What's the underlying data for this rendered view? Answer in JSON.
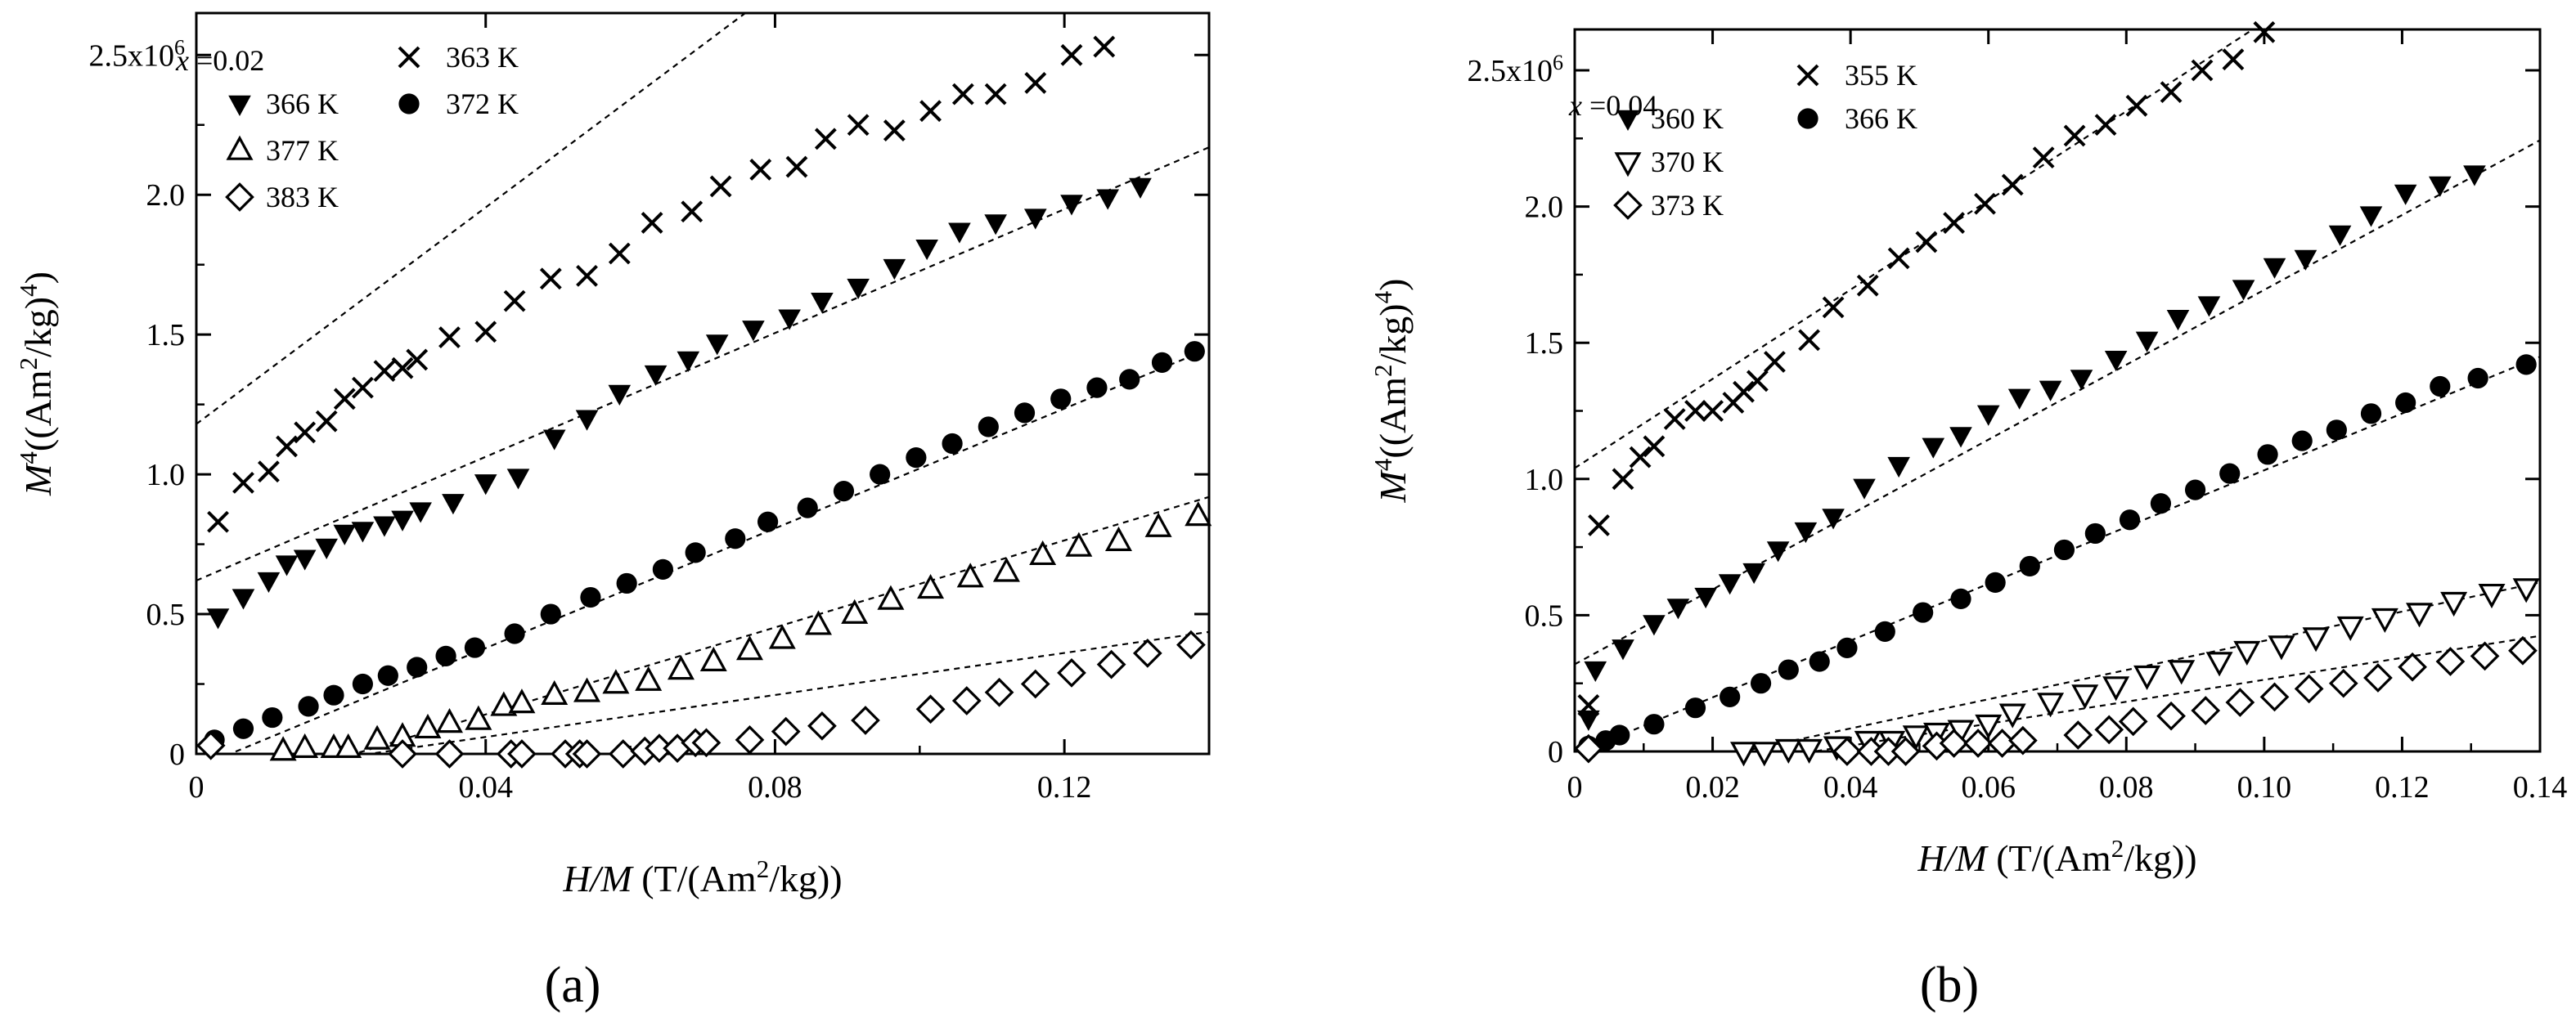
{
  "chart_data": [
    {
      "type": "scatter",
      "panel": "(a)",
      "composition": "x =0.02",
      "xlabel": "H/M (T/(Am²/kg))",
      "ylabel": "M⁴((Am²/kg)⁴)",
      "xlim": [
        0,
        0.14
      ],
      "ylim": [
        0,
        2.65
      ],
      "y_multiplier_label": "2.5x10⁶",
      "xticks": [
        0,
        0.04,
        0.08,
        0.12
      ],
      "xtick_labels": [
        "0",
        "0.04",
        "0.08",
        "0.12"
      ],
      "yticks": [
        0,
        0.5,
        1.0,
        1.5,
        2.0,
        2.5
      ],
      "ytick_labels": [
        "0",
        "0.5",
        "1.0",
        "1.5",
        "2.0",
        "2.5x10⁶"
      ],
      "legend_position": "top-left",
      "series": [
        {
          "name": "363 K",
          "marker": "cross",
          "x": [
            0.003,
            0.0065,
            0.01,
            0.0125,
            0.015,
            0.018,
            0.0205,
            0.023,
            0.026,
            0.0285,
            0.0305,
            0.035,
            0.04,
            0.044,
            0.049,
            0.054,
            0.0585,
            0.063,
            0.0685,
            0.0725,
            0.078,
            0.083,
            0.087,
            0.0915,
            0.0965,
            0.1015,
            0.106,
            0.1105,
            0.116,
            0.121,
            0.1255
          ],
          "y": [
            0.83,
            0.97,
            1.01,
            1.1,
            1.15,
            1.19,
            1.27,
            1.31,
            1.37,
            1.38,
            1.41,
            1.49,
            1.51,
            1.62,
            1.7,
            1.71,
            1.79,
            1.9,
            1.94,
            2.03,
            2.09,
            2.1,
            2.2,
            2.25,
            2.23,
            2.3,
            2.36,
            2.36,
            2.4,
            2.5,
            2.53
          ],
          "fit": [
            1.18,
            0.1937
          ]
        },
        {
          "name": "366 K",
          "marker": "triangle-down-filled",
          "x": [
            0.003,
            0.0065,
            0.01,
            0.0125,
            0.015,
            0.018,
            0.0205,
            0.023,
            0.026,
            0.0285,
            0.031,
            0.0355,
            0.04,
            0.0445,
            0.0495,
            0.054,
            0.0585,
            0.0635,
            0.068,
            0.072,
            0.077,
            0.082,
            0.0865,
            0.0915,
            0.0965,
            0.101,
            0.1055,
            0.1105,
            0.116,
            0.121,
            0.126,
            0.1305
          ],
          "y": [
            0.49,
            0.56,
            0.62,
            0.68,
            0.7,
            0.74,
            0.79,
            0.8,
            0.82,
            0.84,
            0.87,
            0.9,
            0.97,
            0.99,
            1.13,
            1.2,
            1.29,
            1.36,
            1.41,
            1.47,
            1.52,
            1.56,
            1.62,
            1.67,
            1.74,
            1.81,
            1.87,
            1.9,
            1.92,
            1.97,
            1.99,
            2.03
          ],
          "fit": [
            0.62,
            0.1107
          ]
        },
        {
          "name": "372 K",
          "marker": "circle-filled",
          "x": [
            0.0025,
            0.0065,
            0.0105,
            0.0155,
            0.019,
            0.023,
            0.0265,
            0.0305,
            0.0345,
            0.0385,
            0.044,
            0.049,
            0.0545,
            0.0595,
            0.0645,
            0.069,
            0.0745,
            0.079,
            0.0845,
            0.0895,
            0.0945,
            0.0995,
            0.1045,
            0.1095,
            0.1145,
            0.1195,
            0.1245,
            0.129,
            0.1335,
            0.138
          ],
          "y": [
            0.05,
            0.09,
            0.13,
            0.17,
            0.21,
            0.25,
            0.28,
            0.31,
            0.35,
            0.38,
            0.43,
            0.5,
            0.56,
            0.61,
            0.66,
            0.72,
            0.77,
            0.83,
            0.88,
            0.94,
            1.0,
            1.06,
            1.11,
            1.17,
            1.22,
            1.27,
            1.31,
            1.34,
            1.4,
            1.44
          ],
          "fit": [
            -0.05,
            0.1071
          ]
        },
        {
          "name": "377 K",
          "marker": "triangle-up-open",
          "x": [
            0.012,
            0.015,
            0.019,
            0.021,
            0.025,
            0.0285,
            0.032,
            0.035,
            0.039,
            0.0425,
            0.045,
            0.0495,
            0.054,
            0.058,
            0.0625,
            0.067,
            0.0715,
            0.0765,
            0.081,
            0.086,
            0.091,
            0.096,
            0.1015,
            0.107,
            0.112,
            0.117,
            0.122,
            0.1275,
            0.133,
            0.1385
          ],
          "y": [
            0.01,
            0.02,
            0.02,
            0.02,
            0.05,
            0.06,
            0.09,
            0.11,
            0.12,
            0.17,
            0.18,
            0.21,
            0.22,
            0.25,
            0.26,
            0.3,
            0.33,
            0.37,
            0.41,
            0.46,
            0.5,
            0.55,
            0.59,
            0.63,
            0.65,
            0.71,
            0.74,
            0.76,
            0.81,
            0.85
          ],
          "fit": [
            -0.17,
            0.0778
          ]
        },
        {
          "name": "383 K",
          "marker": "diamond-open",
          "x": [
            0.002,
            0.0285,
            0.035,
            0.0435,
            0.045,
            0.051,
            0.053,
            0.054,
            0.059,
            0.062,
            0.064,
            0.0665,
            0.069,
            0.0705,
            0.0765,
            0.0815,
            0.0865,
            0.0925,
            0.1015,
            0.1065,
            0.111,
            0.116,
            0.121,
            0.1265,
            0.1315,
            0.1375
          ],
          "y": [
            0.03,
            0.0,
            0.0,
            0.0,
            0.0,
            0.0,
            0.0,
            0.0,
            0.0,
            0.01,
            0.02,
            0.02,
            0.04,
            0.04,
            0.05,
            0.08,
            0.1,
            0.12,
            0.16,
            0.19,
            0.22,
            0.25,
            0.29,
            0.32,
            0.36,
            0.39
          ],
          "fit": [
            -0.09,
            0.0376
          ]
        }
      ]
    },
    {
      "type": "scatter",
      "panel": "(b)",
      "composition": "x =0.04",
      "xlabel": "H/M (T/(Am²/kg))",
      "ylabel": "M⁴((Am²/kg)⁴)",
      "xlim": [
        0,
        0.14
      ],
      "ylim": [
        0,
        2.65
      ],
      "y_multiplier_label": "2.5x10⁶",
      "xticks": [
        0,
        0.02,
        0.04,
        0.06,
        0.08,
        0.1,
        0.12,
        0.14
      ],
      "xtick_labels": [
        "0",
        "0.02",
        "0.04",
        "0.06",
        "0.08",
        "0.10",
        "0.12",
        "0.14"
      ],
      "yticks": [
        0,
        0.5,
        1.0,
        1.5,
        2.0,
        2.5
      ],
      "ytick_labels": [
        "0",
        "0.5",
        "1.0",
        "1.5",
        "2.0",
        "2.5x10⁶"
      ],
      "legend_position": "top-left",
      "series": [
        {
          "name": "355 K",
          "marker": "cross",
          "x": [
            0.002,
            0.0035,
            0.007,
            0.0095,
            0.0115,
            0.0145,
            0.0175,
            0.02,
            0.023,
            0.0245,
            0.0265,
            0.029,
            0.034,
            0.0375,
            0.0425,
            0.047,
            0.051,
            0.055,
            0.0595,
            0.0635,
            0.068,
            0.0725,
            0.077,
            0.0815,
            0.0865,
            0.091,
            0.0955,
            0.1
          ],
          "y": [
            0.17,
            0.83,
            1.0,
            1.08,
            1.12,
            1.22,
            1.25,
            1.25,
            1.28,
            1.32,
            1.36,
            1.43,
            1.51,
            1.63,
            1.71,
            1.81,
            1.87,
            1.94,
            2.01,
            2.08,
            2.18,
            2.26,
            2.3,
            2.37,
            2.42,
            2.5,
            2.54,
            2.64
          ],
          "fit": [
            1.04,
            0.1637
          ]
        },
        {
          "name": "360 K",
          "marker": "triangle-down-filled",
          "x": [
            0.002,
            0.003,
            0.007,
            0.0115,
            0.015,
            0.019,
            0.0225,
            0.026,
            0.0295,
            0.0335,
            0.0375,
            0.042,
            0.047,
            0.052,
            0.056,
            0.06,
            0.0645,
            0.069,
            0.0735,
            0.0785,
            0.083,
            0.0875,
            0.092,
            0.097,
            0.1015,
            0.106,
            0.111,
            0.1155,
            0.1205,
            0.1255,
            0.1305
          ],
          "y": [
            0.12,
            0.3,
            0.38,
            0.47,
            0.53,
            0.57,
            0.62,
            0.66,
            0.74,
            0.81,
            0.86,
            0.97,
            1.05,
            1.12,
            1.16,
            1.24,
            1.3,
            1.33,
            1.37,
            1.44,
            1.51,
            1.59,
            1.64,
            1.7,
            1.78,
            1.81,
            1.9,
            1.97,
            2.05,
            2.08,
            2.12
          ],
          "fit": [
            0.32,
            0.1374
          ]
        },
        {
          "name": "366 K",
          "marker": "circle-filled",
          "x": [
            0.002,
            0.0045,
            0.0065,
            0.0115,
            0.0175,
            0.0225,
            0.027,
            0.031,
            0.0355,
            0.0395,
            0.045,
            0.0505,
            0.056,
            0.061,
            0.066,
            0.071,
            0.0755,
            0.0805,
            0.085,
            0.09,
            0.095,
            0.1005,
            0.1055,
            0.1105,
            0.1155,
            0.1205,
            0.1255,
            0.131,
            0.138
          ],
          "y": [
            0.02,
            0.04,
            0.06,
            0.1,
            0.16,
            0.2,
            0.25,
            0.3,
            0.33,
            0.38,
            0.44,
            0.51,
            0.56,
            0.62,
            0.68,
            0.74,
            0.8,
            0.85,
            0.91,
            0.96,
            1.02,
            1.09,
            1.14,
            1.18,
            1.24,
            1.28,
            1.34,
            1.37,
            1.42
          ],
          "fit": [
            -0.01,
            0.1042
          ]
        },
        {
          "name": "370 K",
          "marker": "triangle-down-open",
          "x": [
            0.0245,
            0.0275,
            0.031,
            0.034,
            0.038,
            0.0425,
            0.046,
            0.0495,
            0.0525,
            0.056,
            0.06,
            0.0635,
            0.069,
            0.074,
            0.0785,
            0.083,
            0.088,
            0.0935,
            0.0975,
            0.1025,
            0.1075,
            0.1125,
            0.1175,
            0.1225,
            0.1275,
            0.133,
            0.138
          ],
          "y": [
            0.0,
            0.0,
            0.01,
            0.01,
            0.02,
            0.04,
            0.04,
            0.06,
            0.07,
            0.08,
            0.1,
            0.14,
            0.18,
            0.21,
            0.24,
            0.28,
            0.3,
            0.33,
            0.37,
            0.39,
            0.42,
            0.46,
            0.49,
            0.51,
            0.55,
            0.58,
            0.6
          ],
          "fit": [
            -0.13,
            0.0536
          ]
        },
        {
          "name": "373 K",
          "marker": "diamond-open",
          "x": [
            0.002,
            0.0395,
            0.043,
            0.0455,
            0.048,
            0.0525,
            0.055,
            0.0585,
            0.062,
            0.065,
            0.073,
            0.0775,
            0.081,
            0.0865,
            0.0915,
            0.0965,
            0.1015,
            0.1065,
            0.1115,
            0.1165,
            0.1215,
            0.127,
            0.132,
            0.1375
          ],
          "y": [
            0.01,
            0.0,
            0.0,
            0.0,
            0.0,
            0.02,
            0.03,
            0.03,
            0.03,
            0.04,
            0.06,
            0.08,
            0.11,
            0.13,
            0.15,
            0.18,
            0.2,
            0.23,
            0.25,
            0.27,
            0.31,
            0.33,
            0.35,
            0.37
          ],
          "fit": [
            -0.14,
            0.0403
          ]
        }
      ]
    }
  ],
  "captions": [
    "(a)",
    "(b)"
  ]
}
